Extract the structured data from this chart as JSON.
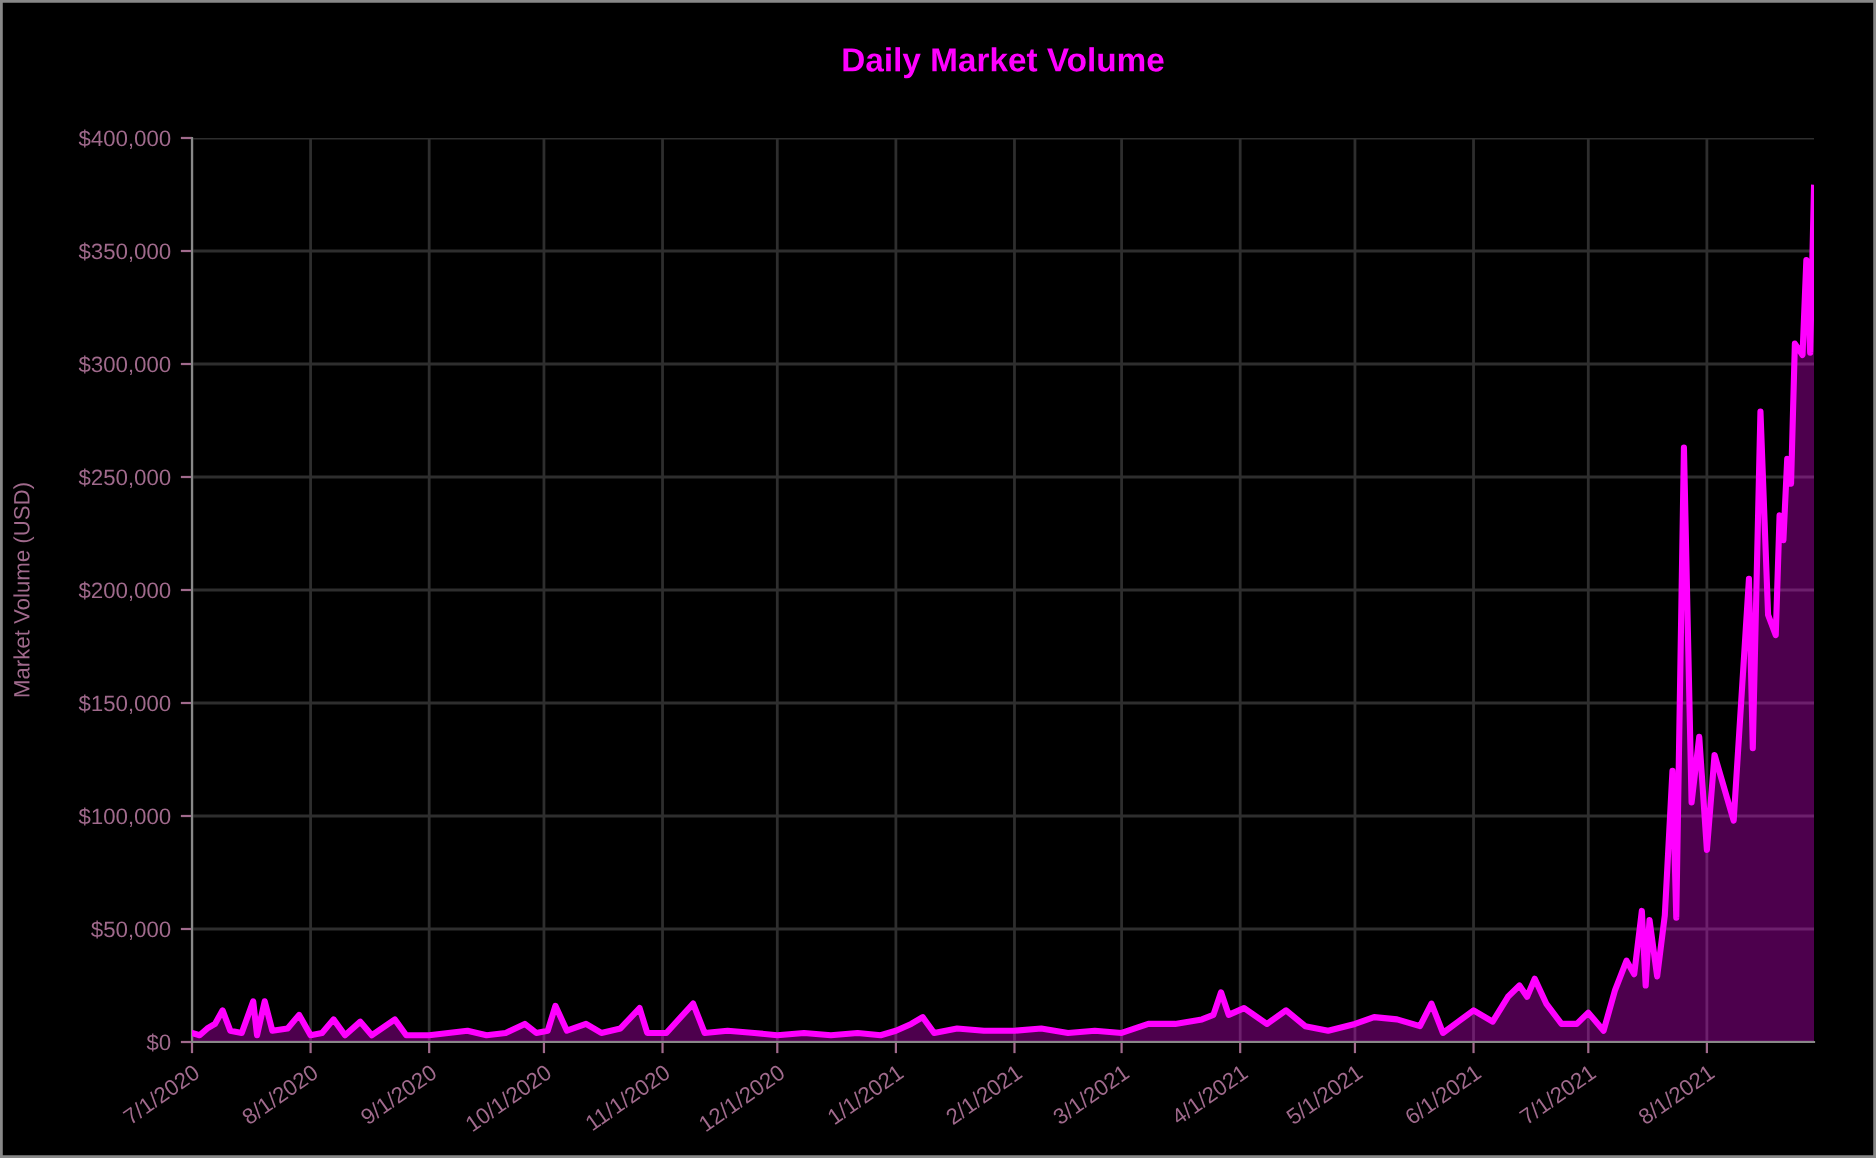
{
  "chart_data": {
    "type": "area",
    "title": "Daily Market Volume",
    "ylabel": "Market Volume (USD)",
    "x": [
      "2020-07-01",
      "2020-07-03",
      "2020-07-05",
      "2020-07-07",
      "2020-07-09",
      "2020-07-11",
      "2020-07-14",
      "2020-07-17",
      "2020-07-18",
      "2020-07-20",
      "2020-07-22",
      "2020-07-26",
      "2020-07-29",
      "2020-08-01",
      "2020-08-04",
      "2020-08-07",
      "2020-08-10",
      "2020-08-14",
      "2020-08-17",
      "2020-08-23",
      "2020-08-26",
      "2020-09-01",
      "2020-09-06",
      "2020-09-11",
      "2020-09-16",
      "2020-09-21",
      "2020-09-26",
      "2020-09-29",
      "2020-10-02",
      "2020-10-04",
      "2020-10-07",
      "2020-10-12",
      "2020-10-16",
      "2020-10-21",
      "2020-10-26",
      "2020-10-28",
      "2020-11-02",
      "2020-11-09",
      "2020-11-12",
      "2020-11-18",
      "2020-11-25",
      "2020-12-01",
      "2020-12-08",
      "2020-12-15",
      "2020-12-22",
      "2020-12-28",
      "2021-01-01",
      "2021-01-05",
      "2021-01-08",
      "2021-01-11",
      "2021-01-17",
      "2021-01-24",
      "2021-02-01",
      "2021-02-08",
      "2021-02-15",
      "2021-02-22",
      "2021-03-01",
      "2021-03-08",
      "2021-03-15",
      "2021-03-22",
      "2021-03-25",
      "2021-03-27",
      "2021-03-29",
      "2021-04-02",
      "2021-04-08",
      "2021-04-13",
      "2021-04-18",
      "2021-04-24",
      "2021-05-01",
      "2021-05-06",
      "2021-05-12",
      "2021-05-18",
      "2021-05-21",
      "2021-05-24",
      "2021-05-28",
      "2021-06-01",
      "2021-06-06",
      "2021-06-10",
      "2021-06-13",
      "2021-06-15",
      "2021-06-17",
      "2021-06-20",
      "2021-06-24",
      "2021-06-28",
      "2021-07-01",
      "2021-07-05",
      "2021-07-08",
      "2021-07-11",
      "2021-07-13",
      "2021-07-15",
      "2021-07-16",
      "2021-07-17",
      "2021-07-19",
      "2021-07-21",
      "2021-07-23",
      "2021-07-24",
      "2021-07-26",
      "2021-07-28",
      "2021-07-30",
      "2021-08-01",
      "2021-08-03",
      "2021-08-08",
      "2021-08-12",
      "2021-08-13",
      "2021-08-15",
      "2021-08-17",
      "2021-08-19",
      "2021-08-20",
      "2021-08-21",
      "2021-08-22",
      "2021-08-23",
      "2021-08-24",
      "2021-08-26",
      "2021-08-27",
      "2021-08-28",
      "2021-08-29"
    ],
    "series": [
      {
        "color": "#ff00ff",
        "values": [
          4000,
          3000,
          6000,
          8000,
          14000,
          5000,
          4000,
          18000,
          3000,
          18000,
          5000,
          6000,
          12000,
          3000,
          4000,
          10000,
          3000,
          9000,
          3000,
          10000,
          3000,
          3000,
          4000,
          5000,
          3000,
          4000,
          8000,
          4000,
          5000,
          16000,
          5000,
          8000,
          4000,
          6000,
          15000,
          4000,
          4000,
          17000,
          4000,
          5000,
          4000,
          3000,
          4000,
          3000,
          4000,
          3000,
          5000,
          8000,
          11000,
          4000,
          6000,
          5000,
          5000,
          6000,
          4000,
          5000,
          4000,
          8000,
          8000,
          10000,
          12000,
          22000,
          12000,
          15000,
          8000,
          14000,
          7000,
          5000,
          8000,
          11000,
          10000,
          7000,
          17000,
          4000,
          9000,
          14000,
          9000,
          20000,
          25000,
          20000,
          28000,
          17000,
          8000,
          8000,
          13000,
          5000,
          23000,
          36000,
          30000,
          58000,
          25000,
          54000,
          29000,
          56000,
          120000,
          55000,
          263000,
          106000,
          135000,
          85000,
          127000,
          98000,
          205000,
          130000,
          279000,
          189000,
          180000,
          233000,
          222000,
          258000,
          247000,
          309000,
          304000,
          346000,
          305000,
          378000
        ]
      }
    ],
    "xlim": [
      "2020-07-01",
      "2021-08-29"
    ],
    "xticks": [
      {
        "value": "2020-07-01",
        "label": "7/1/2020"
      },
      {
        "value": "2020-08-01",
        "label": "8/1/2020"
      },
      {
        "value": "2020-09-01",
        "label": "9/1/2020"
      },
      {
        "value": "2020-10-01",
        "label": "10/1/2020"
      },
      {
        "value": "2020-11-01",
        "label": "11/1/2020"
      },
      {
        "value": "2020-12-01",
        "label": "12/1/2020"
      },
      {
        "value": "2021-01-01",
        "label": "1/1/2021"
      },
      {
        "value": "2021-02-01",
        "label": "2/1/2021"
      },
      {
        "value": "2021-03-01",
        "label": "3/1/2021"
      },
      {
        "value": "2021-04-01",
        "label": "4/1/2021"
      },
      {
        "value": "2021-05-01",
        "label": "5/1/2021"
      },
      {
        "value": "2021-06-01",
        "label": "6/1/2021"
      },
      {
        "value": "2021-07-01",
        "label": "7/1/2021"
      },
      {
        "value": "2021-08-01",
        "label": "8/1/2021"
      }
    ],
    "ylim": [
      0,
      400000
    ],
    "yticks": [
      {
        "value": 0,
        "label": "$0"
      },
      {
        "value": 50000,
        "label": "$50,000"
      },
      {
        "value": 100000,
        "label": "$100,000"
      },
      {
        "value": 150000,
        "label": "$150,000"
      },
      {
        "value": 200000,
        "label": "$200,000"
      },
      {
        "value": 250000,
        "label": "$250,000"
      },
      {
        "value": 300000,
        "label": "$300,000"
      },
      {
        "value": 350000,
        "label": "$350,000"
      },
      {
        "value": 400000,
        "label": "$400,000"
      }
    ],
    "grid": true
  }
}
